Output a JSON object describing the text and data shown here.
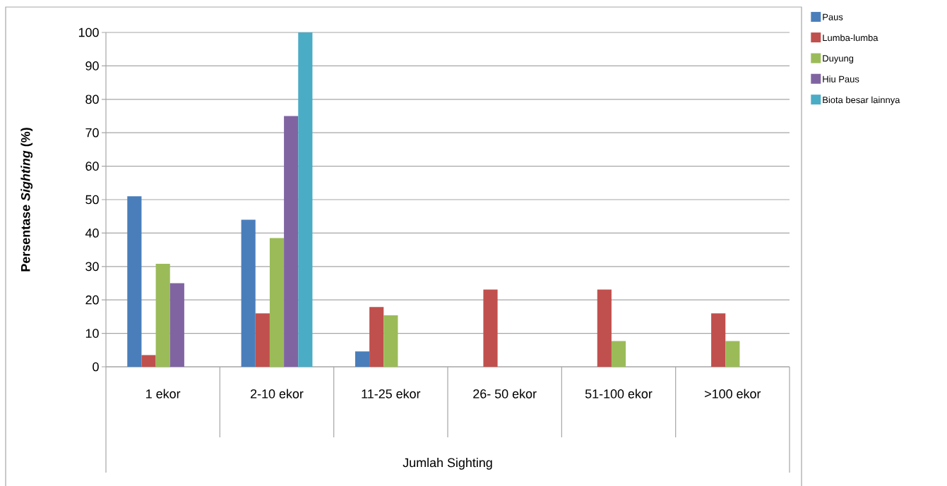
{
  "chart_data": {
    "type": "bar",
    "ylabel": "Persentase *Sighting* (%)",
    "xlabel": "Jumlah  Sighting",
    "categories": [
      "1 ekor",
      "2-10 ekor",
      "11-25 ekor",
      "26- 50 ekor",
      "51-100 ekor",
      ">100 ekor"
    ],
    "series": [
      {
        "name": "Paus",
        "color": "#4a7ebb",
        "values": [
          51,
          44,
          4.6,
          null,
          null,
          null
        ]
      },
      {
        "name": "Lumba-lumba",
        "color": "#c0504d",
        "values": [
          3.5,
          16,
          17.9,
          23.1,
          23.1,
          16
        ]
      },
      {
        "name": "Duyung",
        "color": "#9bbb59",
        "values": [
          30.8,
          38.5,
          15.4,
          null,
          7.7,
          7.7
        ]
      },
      {
        "name": "Hiu Paus",
        "color": "#8064a2",
        "values": [
          25,
          75,
          null,
          null,
          null,
          null
        ]
      },
      {
        "name": "Biota besar lainnya",
        "color": "#4bacc6",
        "values": [
          null,
          100,
          null,
          null,
          null,
          null
        ]
      }
    ],
    "ylim": [
      0,
      100
    ],
    "yticks": [
      0,
      10,
      20,
      30,
      40,
      50,
      60,
      70,
      80,
      90,
      100
    ],
    "grid": "y",
    "legend": "top right"
  }
}
